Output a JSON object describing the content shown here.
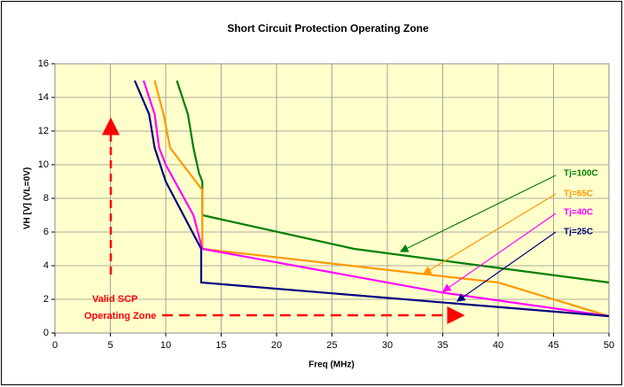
{
  "chart_data": {
    "type": "line",
    "title": "Short Circuit Protection Operating Zone",
    "x_label": "Freq (MHz)",
    "y_label": "VH [V] (VL=0V)",
    "xlim": [
      0,
      50
    ],
    "xticks": [
      0,
      5,
      10,
      15,
      20,
      25,
      30,
      35,
      40,
      45,
      50
    ],
    "ylim": [
      0,
      16
    ],
    "yticks": [
      0,
      2,
      4,
      6,
      8,
      10,
      12,
      14,
      16
    ],
    "grid": true,
    "annotations": [
      "Valid SCP",
      "Operating Zone"
    ],
    "series": [
      {
        "name": "Tj=100C",
        "color": "#008000",
        "x": [
          11,
          12,
          12.5,
          13,
          13.3,
          13.3,
          27,
          50
        ],
        "values": [
          15,
          13,
          11,
          9.5,
          9,
          7,
          5,
          3
        ]
      },
      {
        "name": "Tj=65C",
        "color": "#ff9900",
        "x": [
          9,
          9.8,
          10.4,
          13.3,
          13.3,
          40,
          50
        ],
        "values": [
          15,
          13,
          11,
          8.5,
          5,
          3,
          1
        ]
      },
      {
        "name": "Tj=40C",
        "color": "#ff00ff",
        "x": [
          8,
          9,
          9.4,
          10,
          12.5,
          13.3,
          35,
          50
        ],
        "values": [
          15,
          13,
          11,
          10,
          7,
          5,
          2.4,
          1
        ]
      },
      {
        "name": "Tj=25C",
        "color": "#000080",
        "x": [
          7.2,
          8.5,
          9,
          10,
          13.2,
          13.2,
          50
        ],
        "values": [
          15,
          13,
          11,
          9,
          5,
          3,
          1
        ]
      }
    ]
  }
}
